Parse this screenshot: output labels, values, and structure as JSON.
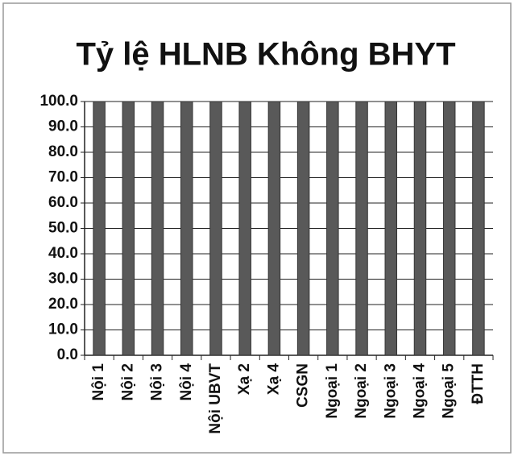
{
  "chart_data": {
    "type": "bar",
    "title": "Tỷ lệ HLNB Không BHYT",
    "categories": [
      "Nội 1",
      "Nội 2",
      "Nội 3",
      "Nội 4",
      "Nội UBVT",
      "Xạ 2",
      "Xạ 4",
      "CSGN",
      "Ngoại 1",
      "Ngoại 2",
      "Ngoại 3",
      "Ngoại 4",
      "Ngoại 5",
      "ĐTTH"
    ],
    "values": [
      100,
      100,
      100,
      100,
      100,
      100,
      100,
      100,
      100,
      100,
      100,
      100,
      100,
      100
    ],
    "color": "#595959",
    "ylim": [
      0,
      100
    ],
    "yticks": [
      {
        "value": 0,
        "label": "0.0"
      },
      {
        "value": 10,
        "label": "10.0"
      },
      {
        "value": 20,
        "label": "20.0"
      },
      {
        "value": 30,
        "label": "30.0"
      },
      {
        "value": 40,
        "label": "40.0"
      },
      {
        "value": 50,
        "label": "50.0"
      },
      {
        "value": 60,
        "label": "60.0"
      },
      {
        "value": 70,
        "label": "70.0"
      },
      {
        "value": 80,
        "label": "80.0"
      },
      {
        "value": 90,
        "label": "90.0"
      },
      {
        "value": 100,
        "label": "100.0"
      }
    ],
    "grid": true
  }
}
